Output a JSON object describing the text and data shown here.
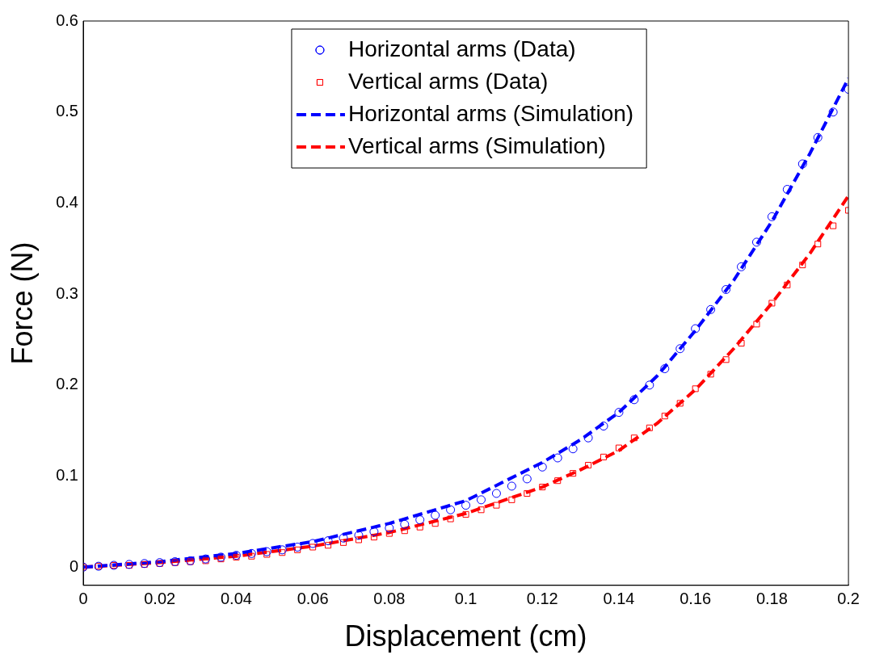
{
  "chart_data": {
    "type": "line",
    "xlabel": "Displacement (cm)",
    "ylabel": "Force (N)",
    "xlim": [
      0,
      0.2
    ],
    "xticks": [
      0,
      0.02,
      0.04,
      0.06,
      0.08,
      0.1,
      0.12,
      0.14,
      0.16,
      0.18,
      0.2
    ],
    "ylim": [
      -0.02,
      0.6
    ],
    "yticks": [
      0,
      0.1,
      0.2,
      0.3,
      0.4,
      0.5,
      0.6
    ],
    "grid": false,
    "legend": "top",
    "series": [
      {
        "name": "Horizontal arms (Data)",
        "type": "scatter",
        "marker": "circle",
        "color": "#0000ff",
        "x": [
          0,
          0.004,
          0.008,
          0.012,
          0.016,
          0.02,
          0.024,
          0.028,
          0.032,
          0.036,
          0.04,
          0.044,
          0.048,
          0.052,
          0.056,
          0.06,
          0.064,
          0.068,
          0.072,
          0.076,
          0.08,
          0.084,
          0.088,
          0.092,
          0.096,
          0.1,
          0.104,
          0.108,
          0.112,
          0.116,
          0.12,
          0.124,
          0.128,
          0.132,
          0.136,
          0.14,
          0.144,
          0.148,
          0.152,
          0.156,
          0.16,
          0.164,
          0.168,
          0.172,
          0.176,
          0.18,
          0.184,
          0.188,
          0.192,
          0.196,
          0.2
        ],
        "values": [
          0,
          0.001,
          0.002,
          0.003,
          0.004,
          0.005,
          0.006,
          0.007,
          0.009,
          0.011,
          0.013,
          0.015,
          0.017,
          0.019,
          0.022,
          0.026,
          0.029,
          0.032,
          0.035,
          0.039,
          0.043,
          0.047,
          0.052,
          0.057,
          0.063,
          0.068,
          0.074,
          0.081,
          0.089,
          0.097,
          0.11,
          0.12,
          0.13,
          0.142,
          0.155,
          0.17,
          0.184,
          0.2,
          0.218,
          0.24,
          0.262,
          0.283,
          0.305,
          0.33,
          0.357,
          0.385,
          0.415,
          0.443,
          0.472,
          0.5,
          0.525
        ]
      },
      {
        "name": "Vertical arms (Data)",
        "type": "scatter",
        "marker": "square",
        "color": "#ff0000",
        "x": [
          0,
          0.004,
          0.008,
          0.012,
          0.016,
          0.02,
          0.024,
          0.028,
          0.032,
          0.036,
          0.04,
          0.044,
          0.048,
          0.052,
          0.056,
          0.06,
          0.064,
          0.068,
          0.072,
          0.076,
          0.08,
          0.084,
          0.088,
          0.092,
          0.096,
          0.1,
          0.104,
          0.108,
          0.112,
          0.116,
          0.12,
          0.124,
          0.128,
          0.132,
          0.136,
          0.14,
          0.144,
          0.148,
          0.152,
          0.156,
          0.16,
          0.164,
          0.168,
          0.172,
          0.176,
          0.18,
          0.184,
          0.188,
          0.192,
          0.196,
          0.2
        ],
        "values": [
          0,
          0.001,
          0.002,
          0.002,
          0.003,
          0.004,
          0.005,
          0.006,
          0.007,
          0.009,
          0.011,
          0.012,
          0.014,
          0.016,
          0.019,
          0.022,
          0.024,
          0.027,
          0.03,
          0.033,
          0.037,
          0.04,
          0.044,
          0.048,
          0.053,
          0.058,
          0.063,
          0.068,
          0.074,
          0.081,
          0.088,
          0.095,
          0.103,
          0.112,
          0.121,
          0.131,
          0.142,
          0.153,
          0.166,
          0.18,
          0.196,
          0.212,
          0.228,
          0.246,
          0.267,
          0.29,
          0.31,
          0.332,
          0.355,
          0.375,
          0.392
        ]
      },
      {
        "name": "Horizontal arms (Simulation)",
        "type": "line",
        "marker": "none",
        "line_style": "dashed",
        "color": "#0000ff",
        "x": [
          0,
          0.02,
          0.04,
          0.06,
          0.08,
          0.1,
          0.12,
          0.13,
          0.14,
          0.15,
          0.16,
          0.17,
          0.18,
          0.19,
          0.2
        ],
        "values": [
          0,
          0.006,
          0.015,
          0.028,
          0.048,
          0.073,
          0.115,
          0.14,
          0.17,
          0.21,
          0.26,
          0.315,
          0.38,
          0.455,
          0.537
        ]
      },
      {
        "name": "Vertical arms (Simulation)",
        "type": "line",
        "marker": "none",
        "line_style": "dashed",
        "color": "#ff0000",
        "x": [
          0,
          0.02,
          0.04,
          0.06,
          0.08,
          0.1,
          0.12,
          0.13,
          0.14,
          0.15,
          0.16,
          0.17,
          0.18,
          0.19,
          0.2
        ],
        "values": [
          0,
          0.005,
          0.012,
          0.023,
          0.038,
          0.059,
          0.088,
          0.107,
          0.128,
          0.158,
          0.195,
          0.24,
          0.29,
          0.345,
          0.408
        ]
      }
    ]
  }
}
